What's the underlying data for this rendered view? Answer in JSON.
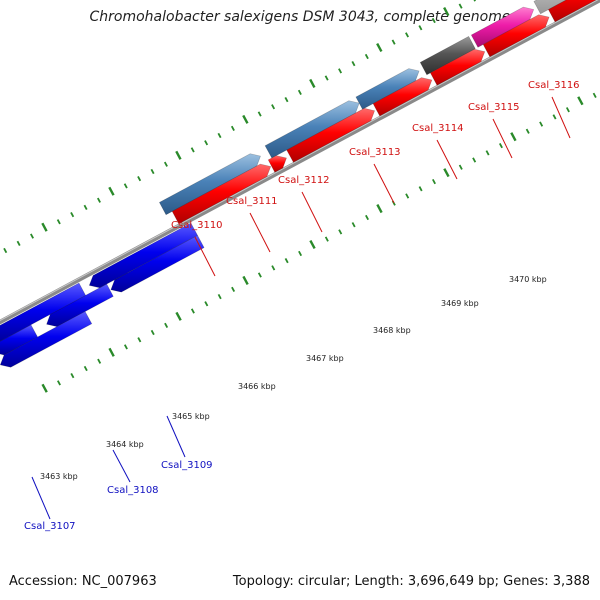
{
  "title": "Chromohalobacter salexigens DSM 3043, complete genome",
  "footer": {
    "accession": "Accession: NC_007963",
    "summary": "Topology: circular; Length: 3,696,649 bp; Genes: 3,388"
  },
  "colors": {
    "backbone": "#8a8a8a",
    "ticks": "#2a8a2a",
    "forward_label": "#d01010",
    "reverse_label": "#1010c0",
    "cds": "#ff0000",
    "gene_blue": "#0000ee",
    "gene_steel": "#4a82b8",
    "gene_dark": "#555555",
    "gene_magenta": "#ee1ca8",
    "gene_light": "#c4c4c4"
  },
  "map": {
    "scale_labels": [
      "3463 kbp",
      "3464 kbp",
      "3465 kbp",
      "3466 kbp",
      "3467 kbp",
      "3468 kbp",
      "3469 kbp",
      "3470 kbp"
    ],
    "forward_genes": [
      "Csal_3110",
      "Csal_3111",
      "Csal_3112",
      "Csal_3113",
      "Csal_3114",
      "Csal_3115",
      "Csal_3116"
    ],
    "reverse_genes": [
      "Csal_3107",
      "Csal_3108",
      "Csal_3109"
    ]
  }
}
